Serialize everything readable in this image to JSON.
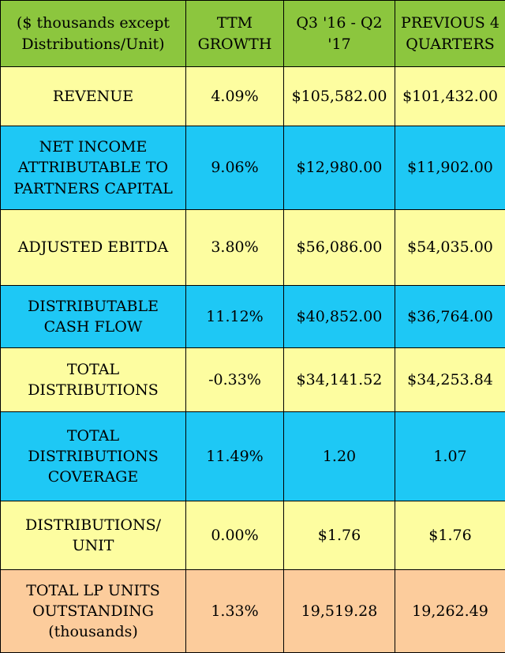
{
  "table": {
    "headers": [
      "($ thousands except\nDistributions/Unit)",
      "TTM\nGROWTH",
      "Q3 '16 - Q2\n'17",
      "PREVIOUS 4\nQUARTERS"
    ],
    "rows": [
      {
        "band": "yellow",
        "cells": [
          "REVENUE",
          "4.09%",
          "$105,582.00",
          "$101,432.00"
        ]
      },
      {
        "band": "blue",
        "cells": [
          "NET INCOME\nATTRIBUTABLE TO\nPARTNERS CAPITAL",
          "9.06%",
          "$12,980.00",
          "$11,902.00"
        ]
      },
      {
        "band": "yellow",
        "cells": [
          "ADJUSTED EBITDA",
          "3.80%",
          "$56,086.00",
          "$54,035.00"
        ]
      },
      {
        "band": "blue",
        "cells": [
          "DISTRIBUTABLE\nCASH FLOW",
          "11.12%",
          "$40,852.00",
          "$36,764.00"
        ]
      },
      {
        "band": "yellow",
        "cells": [
          "TOTAL\nDISTRIBUTIONS",
          "-0.33%",
          "$34,141.52",
          "$34,253.84"
        ]
      },
      {
        "band": "blue",
        "cells": [
          "TOTAL\nDISTRIBUTIONS\nCOVERAGE",
          "11.49%",
          "1.20",
          "1.07"
        ]
      },
      {
        "band": "yellow",
        "cells": [
          "DISTRIBUTIONS/\nUNIT",
          "0.00%",
          "$1.76",
          "$1.76"
        ]
      },
      {
        "band": "orange",
        "cells": [
          "TOTAL LP UNITS\nOUTSTANDING\n(thousands)",
          "1.33%",
          "19,519.28",
          "19,262.49"
        ]
      }
    ]
  },
  "colors": {
    "header": "#8cc63e",
    "yellow": "#fdfda0",
    "blue": "#1ec8f5",
    "orange": "#fccc9c"
  }
}
